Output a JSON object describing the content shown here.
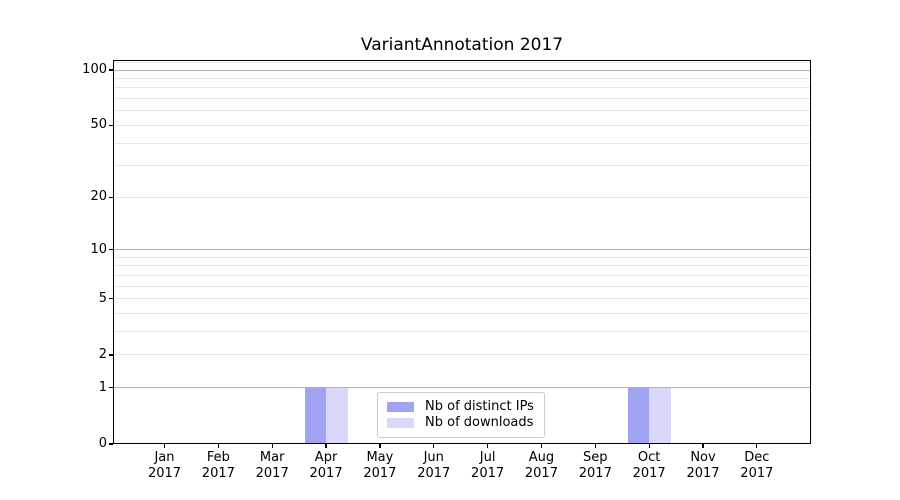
{
  "chart_data": {
    "type": "bar",
    "title": "VariantAnnotation 2017",
    "categories": [
      "Jan",
      "Feb",
      "Mar",
      "Apr",
      "May",
      "Jun",
      "Jul",
      "Aug",
      "Sep",
      "Oct",
      "Nov",
      "Dec"
    ],
    "category_year": "2017",
    "series": [
      {
        "name": "Nb of distinct IPs",
        "color": "#a2a2f2",
        "values": [
          0,
          0,
          0,
          1,
          0,
          0,
          0,
          0,
          0,
          1,
          0,
          0
        ]
      },
      {
        "name": "Nb of downloads",
        "color": "#d8d8f8",
        "values": [
          0,
          0,
          0,
          1,
          0,
          0,
          0,
          0,
          0,
          1,
          0,
          0
        ]
      }
    ],
    "xlabel": "",
    "ylabel": "",
    "y_axis": {
      "scale": "log1p",
      "ylim": [
        0,
        113
      ],
      "ticks": [
        0,
        1,
        2,
        5,
        10,
        20,
        50,
        100
      ],
      "major_gridlines": [
        1,
        10,
        100
      ],
      "minor_gridlines": [
        2,
        3,
        4,
        5,
        6,
        7,
        8,
        9,
        20,
        30,
        40,
        50,
        60,
        70,
        80,
        90,
        110
      ]
    },
    "grid": "horizontal",
    "legend": {
      "position": "inside lower center",
      "entries": [
        "Nb of distinct IPs",
        "Nb of downloads"
      ]
    },
    "colors": {
      "major_grid": "#b3b3b3",
      "minor_grid": "#e8e8e8",
      "axis": "#000000",
      "background": "#ffffff"
    }
  }
}
